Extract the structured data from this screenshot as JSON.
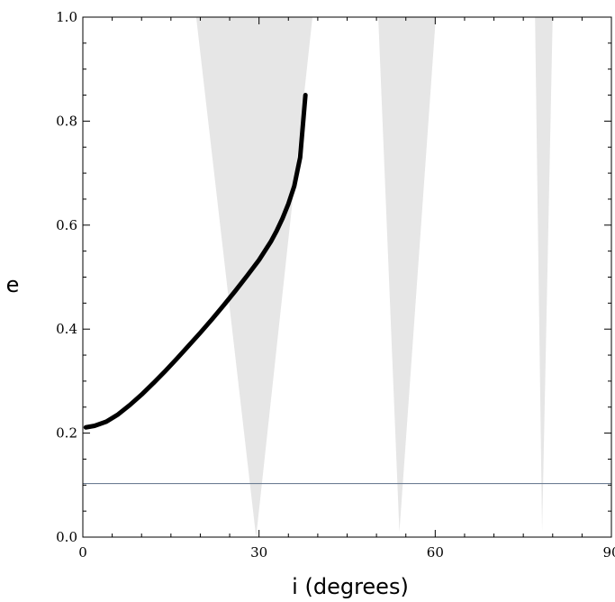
{
  "chart_data": {
    "type": "line",
    "xlabel": "i (degrees)",
    "ylabel": "e",
    "xlim": [
      0,
      90
    ],
    "ylim": [
      0,
      1
    ],
    "x_ticks": [
      {
        "value": 0,
        "label": "0"
      },
      {
        "value": 30,
        "label": "30"
      },
      {
        "value": 60,
        "label": "60"
      },
      {
        "value": 90,
        "label": "90"
      }
    ],
    "y_ticks": [
      {
        "value": 0.0,
        "label": "0.0"
      },
      {
        "value": 0.2,
        "label": "0.2"
      },
      {
        "value": 0.4,
        "label": "0.4"
      },
      {
        "value": 0.6,
        "label": "0.6"
      },
      {
        "value": 0.8,
        "label": "0.8"
      },
      {
        "value": 1.0,
        "label": "1.0"
      }
    ],
    "grid": false,
    "series": [
      {
        "style": "curve",
        "color": "#000000",
        "x": [
          0.5,
          2,
          4,
          6,
          8,
          10,
          12,
          14,
          16,
          18,
          20,
          22,
          24,
          26,
          28,
          30,
          32,
          33,
          34,
          35,
          36,
          37,
          37.3,
          37.6,
          37.9
        ],
        "y": [
          0.211,
          0.214,
          0.222,
          0.236,
          0.254,
          0.274,
          0.296,
          0.319,
          0.343,
          0.368,
          0.393,
          0.419,
          0.446,
          0.474,
          0.503,
          0.533,
          0.568,
          0.589,
          0.613,
          0.641,
          0.675,
          0.73,
          0.77,
          0.81,
          0.85
        ]
      },
      {
        "style": "horizontal-line",
        "color": "#6f7f95",
        "x": [
          0,
          90
        ],
        "y": [
          0.103,
          0.103
        ]
      }
    ],
    "shaded_regions": [
      {
        "color": "#e6e6e6",
        "tip_x": 29.5,
        "tip_y": 0.0,
        "top_left_x": 19.3,
        "top_right_x": 39.1,
        "top_y": 1.0
      },
      {
        "color": "#e6e6e6",
        "tip_x": 53.9,
        "tip_y": 0.01,
        "top_left_x": 50.3,
        "top_right_x": 60.1,
        "top_y": 1.0
      },
      {
        "color": "#e6e6e6",
        "tip_x": 78.2,
        "tip_y": 0.01,
        "top_left_x": 77.0,
        "top_right_x": 80.0,
        "top_y": 1.0
      }
    ]
  }
}
